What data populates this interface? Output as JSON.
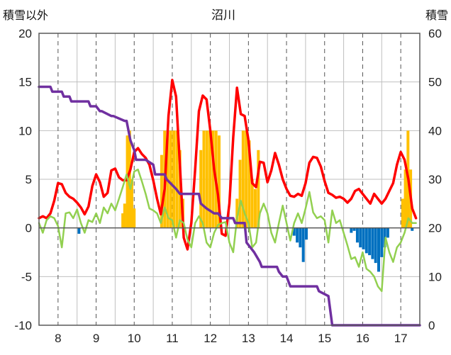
{
  "chart_data": {
    "type": "line",
    "title": "沼川",
    "ylabel_left": "積雪以外",
    "ylabel_right": "積雪",
    "x_ticks": [
      "8",
      "9",
      "10",
      "11",
      "12",
      "13",
      "14",
      "15",
      "16",
      "17"
    ],
    "xlim": [
      7.5,
      17.5
    ],
    "ylim_left": [
      -10,
      20
    ],
    "yticks_left": [
      "20",
      "15",
      "10",
      "5",
      "0",
      "-5",
      "-10"
    ],
    "ylim_right": [
      0,
      60
    ],
    "yticks_right": [
      "60",
      "50",
      "40",
      "30",
      "20",
      "10",
      "0"
    ],
    "grid": true,
    "colors": {
      "temperature": "#ff0000",
      "other": "#92d050",
      "snow_depth": "#7030a0",
      "bar_positive": "#ffc000",
      "bar_negative": "#0070c0"
    },
    "series": [
      {
        "axis": "left",
        "color": "#ff0000",
        "x": [
          7.5,
          7.6,
          7.7,
          7.8,
          7.9,
          8.0,
          8.1,
          8.2,
          8.3,
          8.4,
          8.5,
          8.6,
          8.7,
          8.8,
          8.9,
          9.0,
          9.1,
          9.2,
          9.3,
          9.4,
          9.5,
          9.6,
          9.7,
          9.8,
          9.9,
          10.0,
          10.1,
          10.2,
          10.3,
          10.4,
          10.5,
          10.6,
          10.7,
          10.8,
          10.9,
          11.0,
          11.1,
          11.2,
          11.3,
          11.4,
          11.5,
          11.6,
          11.7,
          11.8,
          11.9,
          12.0,
          12.1,
          12.2,
          12.3,
          12.4,
          12.5,
          12.6,
          12.7,
          12.8,
          12.9,
          13.0,
          13.1,
          13.2,
          13.3,
          13.4,
          13.5,
          13.6,
          13.7,
          13.8,
          13.9,
          14.0,
          14.1,
          14.2,
          14.3,
          14.4,
          14.5,
          14.6,
          14.7,
          14.8,
          14.9,
          15.0,
          15.1,
          15.2,
          15.3,
          15.4,
          15.5,
          15.6,
          15.7,
          15.8,
          15.9,
          16.0,
          16.1,
          16.2,
          16.3,
          16.4,
          16.5,
          16.6,
          16.7,
          16.8,
          16.9,
          17.0,
          17.1,
          17.2,
          17.3,
          17.4
        ],
        "y": [
          1.0,
          1.2,
          1.0,
          1.5,
          2.8,
          4.6,
          4.5,
          3.6,
          3.2,
          3.0,
          2.6,
          2.1,
          1.4,
          2.2,
          4.3,
          5.5,
          4.7,
          3.2,
          3.6,
          5.9,
          6.1,
          5.2,
          4.9,
          4.9,
          6.0,
          7.8,
          8.2,
          7.6,
          7.2,
          6.5,
          4.9,
          3.0,
          1.4,
          4.0,
          11.5,
          15.2,
          13.5,
          6.5,
          -1.0,
          -2.2,
          0.5,
          6.0,
          12.0,
          13.6,
          13.2,
          10.0,
          6.0,
          3.4,
          -0.6,
          -0.8,
          2.5,
          9.3,
          14.4,
          11.7,
          11.5,
          9.0,
          4.6,
          4.2,
          6.8,
          6.7,
          4.7,
          5.9,
          7.7,
          6.5,
          5.0,
          4.0,
          3.3,
          3.2,
          3.5,
          3.3,
          4.6,
          6.7,
          7.3,
          7.2,
          6.3,
          4.8,
          3.6,
          3.4,
          3.1,
          3.2,
          3.0,
          2.6,
          3.0,
          3.8,
          4.0,
          3.5,
          3.0,
          2.5,
          3.5,
          3.0,
          2.5,
          3.0,
          3.8,
          4.6,
          6.5,
          7.8,
          7.0,
          5.0,
          2.0,
          1.0
        ]
      },
      {
        "axis": "left",
        "color": "#92d050",
        "x": [
          7.5,
          7.6,
          7.7,
          7.8,
          7.9,
          8.0,
          8.1,
          8.2,
          8.3,
          8.4,
          8.5,
          8.6,
          8.7,
          8.8,
          8.9,
          9.0,
          9.1,
          9.2,
          9.3,
          9.4,
          9.5,
          9.6,
          9.7,
          9.8,
          9.9,
          10.0,
          10.1,
          10.2,
          10.3,
          10.4,
          10.5,
          10.6,
          10.7,
          10.8,
          10.9,
          11.0,
          11.1,
          11.2,
          11.3,
          11.4,
          11.5,
          11.6,
          11.7,
          11.8,
          11.9,
          12.0,
          12.1,
          12.2,
          12.3,
          12.4,
          12.5,
          12.6,
          12.7,
          12.8,
          12.9,
          13.0,
          13.1,
          13.2,
          13.3,
          13.4,
          13.5,
          13.6,
          13.7,
          13.8,
          13.9,
          14.0,
          14.1,
          14.2,
          14.3,
          14.4,
          14.5,
          14.6,
          14.7,
          14.8,
          14.9,
          15.0,
          15.1,
          15.2,
          15.3,
          15.4,
          15.5,
          15.6,
          15.7,
          15.8,
          15.9,
          16.0,
          16.1,
          16.2,
          16.3,
          16.4,
          16.5,
          16.6,
          16.7,
          16.8,
          16.9,
          17.0,
          17.1,
          17.2,
          17.3,
          17.4
        ],
        "y": [
          0.5,
          -0.5,
          0.8,
          1.2,
          1.0,
          0.2,
          -2.0,
          1.5,
          1.6,
          1.0,
          1.9,
          0.5,
          -0.5,
          0.8,
          0.6,
          1.5,
          0.5,
          2.1,
          1.5,
          2.5,
          1.8,
          3.0,
          4.2,
          5.5,
          4.0,
          5.8,
          6.0,
          4.8,
          3.5,
          2.0,
          1.8,
          1.5,
          0.5,
          2.1,
          1.0,
          0.8,
          -1.0,
          0.8,
          0.5,
          -1.2,
          -2.0,
          0.5,
          1.2,
          0.5,
          -1.5,
          -2.0,
          -0.5,
          0.3,
          0.5,
          0.6,
          -1.5,
          -2.5,
          1.0,
          2.8,
          1.5,
          0.5,
          -2.0,
          -1.5,
          1.5,
          2.5,
          1.5,
          -0.5,
          -1.5,
          0.5,
          2.3,
          0.5,
          -1.3,
          0.5,
          1.5,
          0.5,
          2.0,
          3.7,
          1.6,
          1.0,
          1.2,
          0.8,
          -1.5,
          1.8,
          0.5,
          0.8,
          -0.5,
          -1.8,
          -3.2,
          -3.0,
          -4.0,
          -2.5,
          -4.2,
          -4.5,
          -5.0,
          -6.0,
          -6.5,
          -1.0,
          -2.5,
          -3.5,
          -2.0,
          -1.5,
          -0.5,
          1.0,
          0.5,
          0.5
        ]
      },
      {
        "axis": "right",
        "color": "#7030a0",
        "x": [
          7.5,
          7.8,
          7.85,
          8.1,
          8.15,
          8.3,
          8.35,
          8.8,
          8.85,
          9.0,
          9.1,
          9.15,
          9.4,
          9.45,
          9.75,
          9.8,
          9.9,
          10.0,
          10.05,
          10.3,
          10.5,
          10.55,
          10.8,
          10.85,
          11.1,
          11.2,
          11.4,
          11.6,
          11.7,
          11.75,
          11.9,
          12.1,
          12.2,
          12.3,
          12.6,
          12.65,
          12.9,
          12.95,
          13.05,
          13.15,
          13.3,
          13.35,
          13.75,
          13.8,
          13.9,
          14.0,
          14.1,
          14.4,
          14.45,
          14.8,
          14.85,
          15.1,
          15.2,
          17.5
        ],
        "y": [
          49,
          49,
          48,
          48,
          47,
          47,
          46,
          46,
          45,
          45,
          44,
          44,
          43,
          43,
          42,
          42,
          38,
          36,
          34,
          34,
          33,
          31,
          31,
          30,
          28,
          27,
          27,
          27,
          27,
          25,
          24,
          23,
          23,
          22,
          22,
          21,
          21,
          17,
          16,
          15,
          13,
          12,
          12,
          11,
          10,
          10,
          8,
          8,
          8,
          8,
          7,
          6,
          0,
          0
        ]
      }
    ],
    "bars": [
      {
        "axis": "left",
        "color": "#ffc000",
        "x": [
          9.7,
          9.75,
          9.82,
          9.88,
          9.94,
          10.0
        ],
        "y": [
          1.5,
          2.5,
          9.5,
          10.0,
          5.0,
          2.0
        ]
      },
      {
        "axis": "left",
        "color": "#ffc000",
        "x": [
          10.72,
          10.8,
          10.88,
          10.96,
          11.04,
          11.12,
          11.2,
          11.28
        ],
        "y": [
          7.5,
          10.0,
          10.0,
          10.0,
          10.0,
          10.0,
          8.0,
          3.0
        ]
      },
      {
        "axis": "left",
        "color": "#ffc000",
        "x": [
          11.75,
          11.83,
          11.91,
          11.99,
          12.07,
          12.15,
          12.23
        ],
        "y": [
          8.0,
          10.0,
          10.0,
          10.0,
          10.0,
          10.0,
          9.5
        ]
      },
      {
        "axis": "left",
        "color": "#ffc000",
        "x": [
          12.7,
          12.78,
          12.86,
          12.94,
          13.02,
          13.1,
          13.18,
          13.26
        ],
        "y": [
          3.0,
          7.0,
          10.0,
          10.0,
          9.0,
          5.0,
          4.0,
          8.0
        ]
      },
      {
        "axis": "left",
        "color": "#ffc000",
        "x": [
          17.05,
          17.12,
          17.19,
          17.26
        ],
        "y": [
          3.0,
          6.0,
          10.0,
          6.0
        ]
      },
      {
        "axis": "left",
        "color": "#0070c0",
        "x": [
          8.55
        ],
        "y": [
          -0.6
        ]
      },
      {
        "axis": "left",
        "color": "#0070c0",
        "x": [
          14.2,
          14.28,
          14.36,
          14.44,
          14.52
        ],
        "y": [
          -0.8,
          -1.5,
          -2.0,
          -3.5,
          -1.2
        ]
      },
      {
        "axis": "left",
        "color": "#0070c0",
        "x": [
          15.7,
          15.78,
          15.86,
          15.94,
          16.02,
          16.1,
          16.18,
          16.26,
          16.34,
          16.42,
          16.5,
          16.58,
          16.66
        ],
        "y": [
          -0.5,
          -0.3,
          -1.5,
          -2.0,
          -2.2,
          -2.6,
          -2.8,
          -3.2,
          -3.6,
          -4.5,
          -3.0,
          -2.0,
          -1.0
        ]
      },
      {
        "axis": "left",
        "color": "#0070c0",
        "x": [
          17.3
        ],
        "y": [
          -0.3
        ]
      }
    ]
  }
}
